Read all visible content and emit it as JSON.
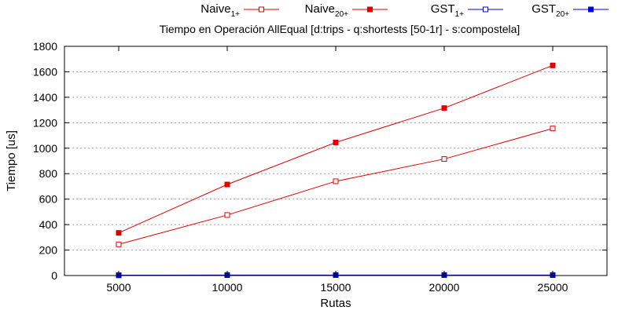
{
  "chart_data": {
    "type": "line",
    "title": "Tiempo en Operación AllEqual [d:trips - q:shortests [50-1r] - s:compostela]",
    "xlabel": "Rutas",
    "ylabel": "Tiempo [us]",
    "xlim": [
      2500,
      27500
    ],
    "ylim": [
      0,
      1800
    ],
    "x_ticks": [
      5000,
      10000,
      15000,
      20000,
      25000
    ],
    "y_ticks": [
      0,
      200,
      400,
      600,
      800,
      1000,
      1200,
      1400,
      1600,
      1800
    ],
    "grid": "horizontal dotted",
    "legend_position": "top",
    "series": [
      {
        "name": "Naive",
        "sub": "1+",
        "color": "#e00000",
        "marker": "open-square",
        "x": [
          5000,
          10000,
          15000,
          20000,
          25000
        ],
        "values": [
          245,
          475,
          740,
          915,
          1155
        ]
      },
      {
        "name": "Naive",
        "sub": "20+",
        "color": "#e00000",
        "marker": "filled-square",
        "x": [
          5000,
          10000,
          15000,
          20000,
          25000
        ],
        "values": [
          335,
          715,
          1045,
          1315,
          1650
        ]
      },
      {
        "name": "GST",
        "sub": "1+",
        "color": "#0000e0",
        "marker": "open-square",
        "x": [
          5000,
          10000,
          15000,
          20000,
          25000
        ],
        "values": [
          2,
          3,
          3,
          3,
          3
        ]
      },
      {
        "name": "GST",
        "sub": "20+",
        "color": "#0000e0",
        "marker": "filled-square",
        "x": [
          5000,
          10000,
          15000,
          20000,
          25000
        ],
        "values": [
          2,
          4,
          4,
          4,
          4
        ]
      }
    ]
  }
}
